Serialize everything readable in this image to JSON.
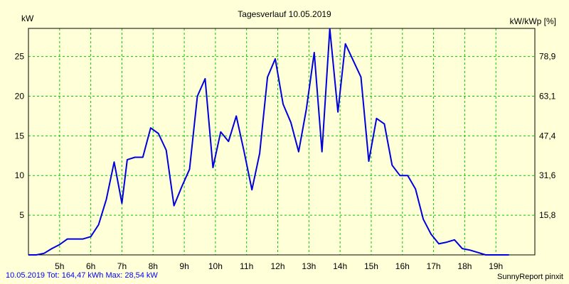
{
  "chart_data": {
    "type": "line",
    "title": "Tagesverlauf 10.05.2019",
    "ylabel_left": "kW",
    "ylabel_right": "kW/kWp [%]",
    "ylim": [
      0,
      28.54
    ],
    "yticks_left": [
      "5",
      "10",
      "15",
      "20",
      "25"
    ],
    "yticks_left_values": [
      5,
      10,
      15,
      20,
      25
    ],
    "yticks_right": [
      "15,8",
      "31,6",
      "47,4",
      "63,1",
      "78,9"
    ],
    "xlim": [
      4.0,
      20.25
    ],
    "xticks": [
      "5h",
      "6h",
      "7h",
      "8h",
      "9h",
      "10h",
      "11h",
      "12h",
      "13h",
      "14h",
      "15h",
      "16h",
      "17h",
      "18h",
      "19h"
    ],
    "xticks_values": [
      5,
      6,
      7,
      8,
      9,
      10,
      11,
      12,
      13,
      14,
      15,
      16,
      17,
      18,
      19
    ],
    "grid": true,
    "colors": {
      "line": "#0000dd",
      "grid": "#00cc00",
      "background": "#ffffd8",
      "axis": "#000000",
      "footer_text": "#0000ff"
    },
    "series": [
      {
        "x": [
          4.0,
          4.25,
          4.5,
          4.75,
          5.0,
          5.25,
          5.5,
          5.75,
          6.0,
          6.25,
          6.5,
          6.75,
          7.0,
          7.17,
          7.42,
          7.67,
          7.92,
          8.17,
          8.42,
          8.67,
          8.92,
          9.17,
          9.42,
          9.67,
          9.92,
          10.17,
          10.42,
          10.67,
          10.92,
          11.17,
          11.42,
          11.67,
          11.92,
          12.17,
          12.42,
          12.67,
          12.92,
          13.17,
          13.42,
          13.67,
          13.93,
          14.17,
          14.42,
          14.67,
          14.92,
          15.17,
          15.42,
          15.67,
          15.92,
          16.17,
          16.42,
          16.67,
          16.92,
          17.17,
          17.42,
          17.67,
          17.92,
          18.17,
          18.42,
          18.67,
          18.92,
          19.17,
          19.42
        ],
        "values": [
          0,
          0,
          0.2,
          0.8,
          1.3,
          2.0,
          2.0,
          2.0,
          2.3,
          3.8,
          7.0,
          11.7,
          6.5,
          12.0,
          12.3,
          12.3,
          16.0,
          15.3,
          13.2,
          6.2,
          8.6,
          10.8,
          20.0,
          22.2,
          11.0,
          15.5,
          14.3,
          17.5,
          13.0,
          8.2,
          12.8,
          22.4,
          24.7,
          19.0,
          16.7,
          13.0,
          18.4,
          25.5,
          13.0,
          28.5,
          18.0,
          26.6,
          24.5,
          22.4,
          11.8,
          17.2,
          16.5,
          11.3,
          10.0,
          10.0,
          8.3,
          4.5,
          2.6,
          1.4,
          1.6,
          1.9,
          0.8,
          0.6,
          0.3,
          0,
          0,
          0,
          0
        ]
      }
    ]
  },
  "footer": {
    "left": "10.05.2019 Tot: 164,47 kWh Max: 28,54 kW",
    "right": "SunnyReport pinxit"
  }
}
